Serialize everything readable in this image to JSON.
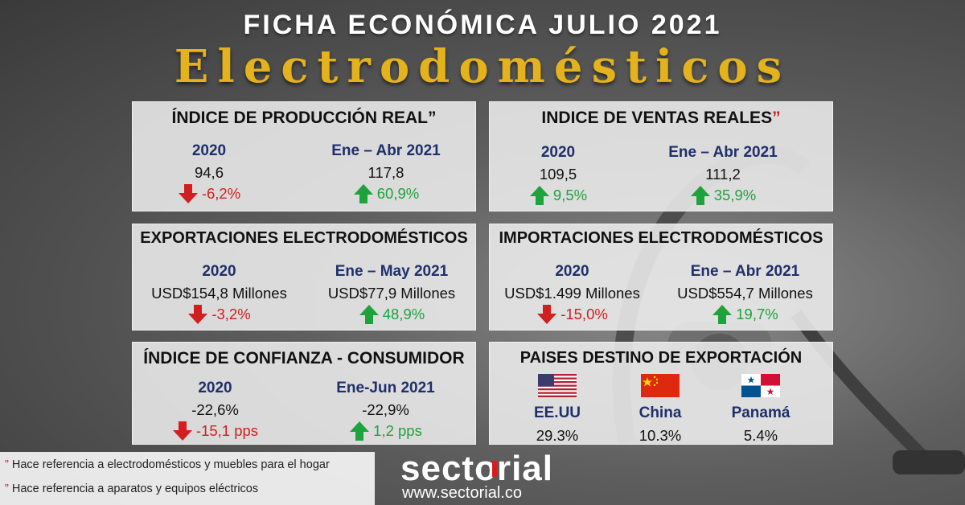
{
  "header": {
    "line1": "FICHA ECONÓMICA JULIO 2021",
    "line2": "Electrodomésticos"
  },
  "panels": {
    "produccion": {
      "title": "ÍNDICE DE PRODUCCIÓN REAL",
      "title_mark": "”",
      "left": {
        "period": "2020",
        "value": "94,6",
        "change": "-6,2%",
        "direction": "down"
      },
      "right": {
        "period": "Ene – Abr 2021",
        "value": "117,8",
        "change": "60,9%",
        "direction": "up"
      }
    },
    "ventas": {
      "title": "INDICE DE VENTAS REALES",
      "title_mark": "”",
      "left": {
        "period": "2020",
        "value": "109,5",
        "change": "9,5%",
        "direction": "up"
      },
      "right": {
        "period": "Ene – Abr 2021",
        "value": "111,2",
        "change": "35,9%",
        "direction": "up"
      }
    },
    "exportaciones": {
      "title": "EXPORTACIONES ELECTRODOMÉSTICOS",
      "left": {
        "period": "2020",
        "value": "USD$154,8 Millones",
        "change": "-3,2%",
        "direction": "down"
      },
      "right": {
        "period": "Ene – May 2021",
        "value": "USD$77,9 Millones",
        "change": "48,9%",
        "direction": "up"
      }
    },
    "importaciones": {
      "title": "IMPORTACIONES ELECTRODOMÉSTICOS",
      "left": {
        "period": "2020",
        "value": "USD$1.499 Millones",
        "change": "-15,0%",
        "direction": "down"
      },
      "right": {
        "period": "Ene – Abr 2021",
        "value": "USD$554,7 Millones",
        "change": "19,7%",
        "direction": "up"
      }
    },
    "confianza": {
      "title": "ÍNDICE DE CONFIANZA - CONSUMIDOR",
      "left": {
        "period": "2020",
        "value": "-22,6%",
        "change": "-15,1 pps",
        "direction": "down"
      },
      "right": {
        "period": "Ene-Jun 2021",
        "value": "-22,9%",
        "change": "1,2 pps",
        "direction": "up"
      }
    },
    "destinos": {
      "title": "PAISES DESTINO DE EXPORTACIÓN",
      "countries": [
        {
          "name": "EE.UU",
          "share": "29.3%",
          "flag": "usa-flag"
        },
        {
          "name": "China",
          "share": "10.3%",
          "flag": "china-flag"
        },
        {
          "name": "Panamá",
          "share": "5.4%",
          "flag": "panama-flag"
        }
      ]
    }
  },
  "notes": [
    {
      "mark": "”",
      "text": "Hace referencia a electrodomésticos y muebles para el hogar"
    },
    {
      "mark": "”",
      "text": "Hace referencia a aparatos y equipos eléctricos"
    }
  ],
  "brand": {
    "name": "sectorial",
    "url": "www.sectorial.co"
  },
  "colors": {
    "accent_gold": "#e3b21c",
    "up": "#1ea33c",
    "down": "#d11f1f",
    "period_blue": "#1f2f6b"
  }
}
